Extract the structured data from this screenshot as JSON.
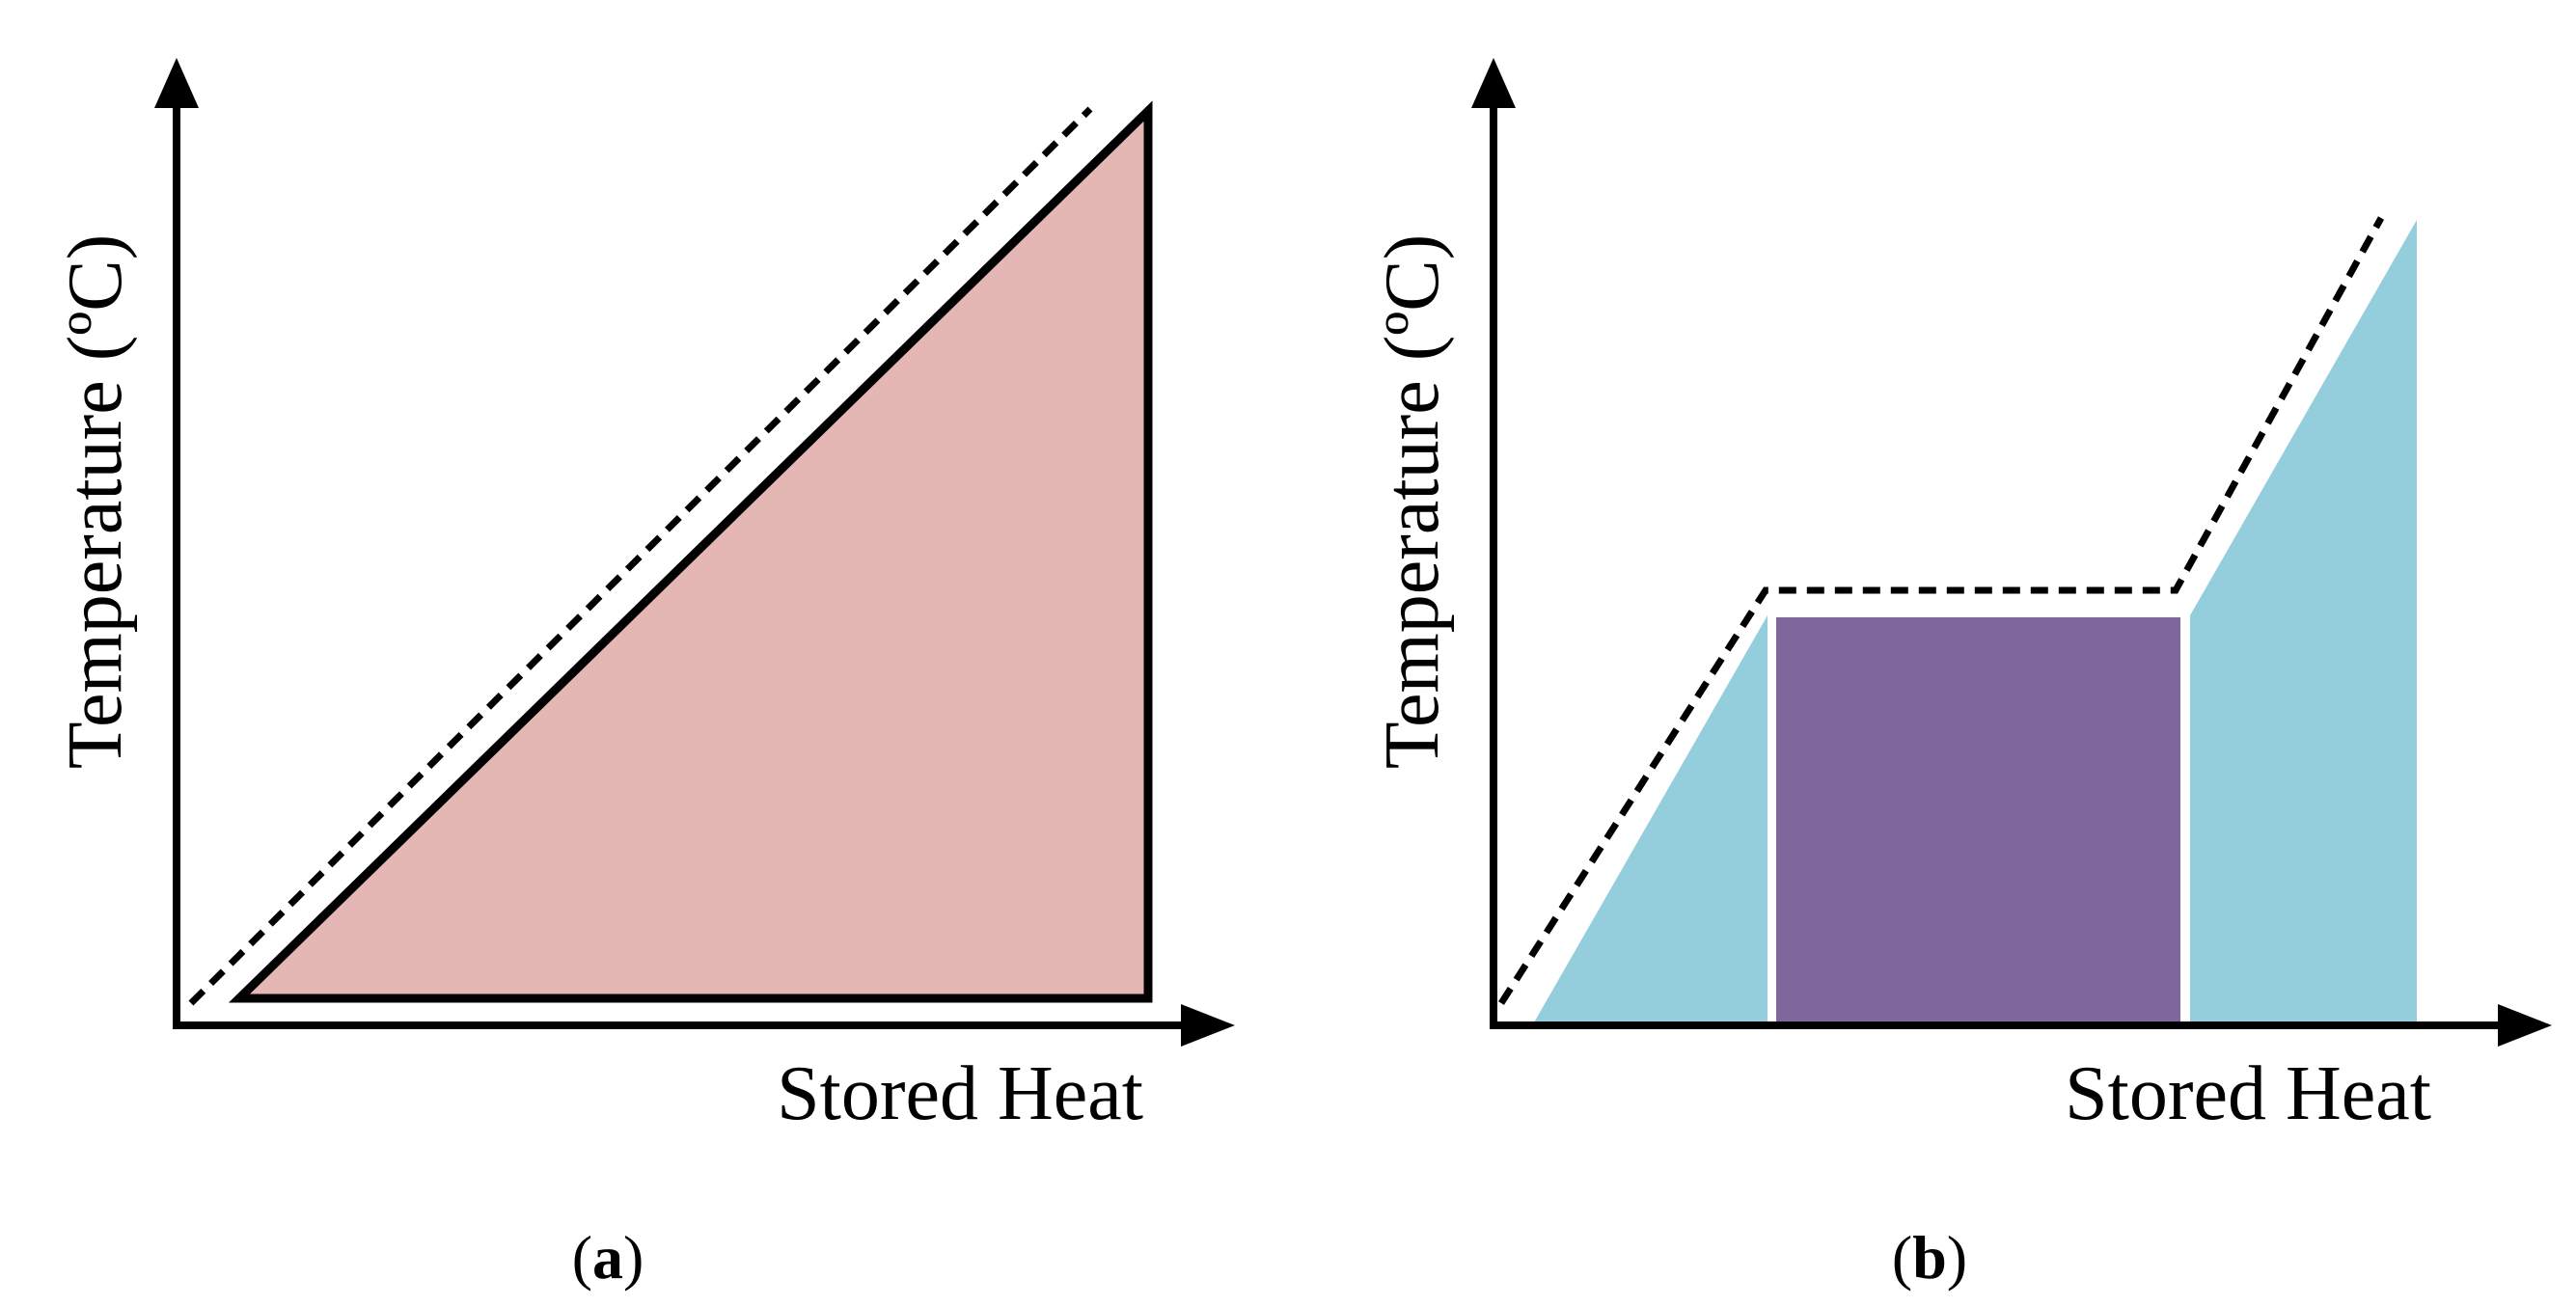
{
  "panels": [
    {
      "id": "a",
      "caption_letter": "a",
      "ylabel": "Temperature (ºC)",
      "xlabel": "Stored Heat",
      "sensible_fill_color": "#e4b7b5"
    },
    {
      "id": "b",
      "caption_letter": "b",
      "ylabel": "Temperature (ºC)",
      "xlabel": "Stored Heat",
      "sensible_fill_color": "#94cddb",
      "latent_fill_color": "#7f669d"
    }
  ],
  "caption_open": "(",
  "caption_close": ")"
}
